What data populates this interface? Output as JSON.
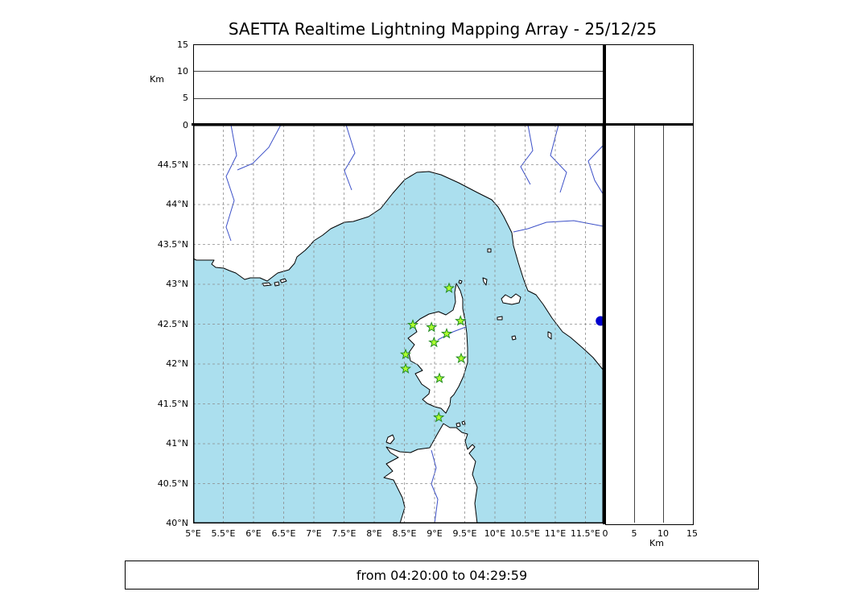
{
  "title": "SAETTA Realtime Lightning Mapping Array - 25/12/25",
  "status_bar": {
    "text": "from 04:20:00 to 04:29:59"
  },
  "altitude_panel": {
    "unit_label": "Km",
    "axis_max": 15,
    "ticks": [
      {
        "value": 0,
        "label": "0"
      },
      {
        "value": 5,
        "label": "5"
      },
      {
        "value": 10,
        "label": "10"
      },
      {
        "value": 15,
        "label": "15"
      }
    ]
  },
  "side_panel": {
    "unit_label": "Km",
    "axis_max": 15,
    "ticks": [
      {
        "value": 0,
        "label": "0"
      },
      {
        "value": 5,
        "label": "5"
      },
      {
        "value": 10,
        "label": "10"
      },
      {
        "value": 15,
        "label": "15"
      }
    ]
  },
  "map": {
    "lon_range": [
      5,
      11.8
    ],
    "lat_range": [
      40,
      45
    ],
    "lon_ticks": [
      {
        "value": 5,
        "label": "5°E"
      },
      {
        "value": 5.5,
        "label": "5.5°E"
      },
      {
        "value": 6,
        "label": "6°E"
      },
      {
        "value": 6.5,
        "label": "6.5°E"
      },
      {
        "value": 7,
        "label": "7°E"
      },
      {
        "value": 7.5,
        "label": "7.5°E"
      },
      {
        "value": 8,
        "label": "8°E"
      },
      {
        "value": 8.5,
        "label": "8.5°E"
      },
      {
        "value": 9,
        "label": "9°E"
      },
      {
        "value": 9.5,
        "label": "9.5°E"
      },
      {
        "value": 10,
        "label": "10°E"
      },
      {
        "value": 10.5,
        "label": "10.5°E"
      },
      {
        "value": 11,
        "label": "11°E"
      },
      {
        "value": 11.5,
        "label": "11.5°E"
      }
    ],
    "lat_ticks": [
      {
        "value": 40,
        "label": "40°N"
      },
      {
        "value": 40.5,
        "label": "40.5°N"
      },
      {
        "value": 41,
        "label": "41°N"
      },
      {
        "value": 41.5,
        "label": "41.5°N"
      },
      {
        "value": 42,
        "label": "42°N"
      },
      {
        "value": 42.5,
        "label": "42.5°N"
      },
      {
        "value": 43,
        "label": "43°N"
      },
      {
        "value": 43.5,
        "label": "43.5°N"
      },
      {
        "value": 44,
        "label": "44°N"
      },
      {
        "value": 44.5,
        "label": "44.5°N"
      }
    ],
    "colors": {
      "sea": "#abdfee",
      "land": "#ffffff",
      "coast": "#000000",
      "grid": "#8c8c8c",
      "river": "#3c50c8",
      "station_fill": "#adff2f",
      "station_edge": "#228b22",
      "dot": "#0000cd"
    },
    "stations": [
      {
        "lon": 9.24,
        "lat": 42.95
      },
      {
        "lon": 8.64,
        "lat": 42.49
      },
      {
        "lon": 8.95,
        "lat": 42.46
      },
      {
        "lon": 9.43,
        "lat": 42.54
      },
      {
        "lon": 9.2,
        "lat": 42.38
      },
      {
        "lon": 8.99,
        "lat": 42.27
      },
      {
        "lon": 8.52,
        "lat": 42.12
      },
      {
        "lon": 9.44,
        "lat": 42.07
      },
      {
        "lon": 8.52,
        "lat": 41.94
      },
      {
        "lon": 9.08,
        "lat": 41.82
      },
      {
        "lon": 9.07,
        "lat": 41.33
      }
    ],
    "marker_dot": {
      "lon": 11.75,
      "lat": 42.54
    }
  }
}
